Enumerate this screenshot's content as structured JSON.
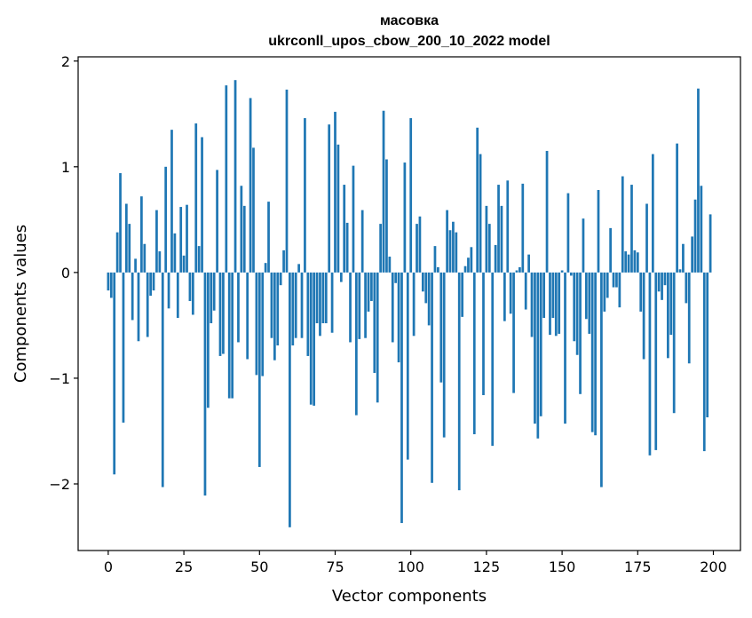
{
  "chart_data": {
    "type": "bar",
    "title": "масовка",
    "subtitle": "ukrconll_upos_cbow_200_10_2022 model",
    "xlabel": "Vector components",
    "ylabel": "Components values",
    "xlim": [
      -9.95,
      208.95
    ],
    "ylim": [
      -2.63,
      2.04
    ],
    "xticks": [
      0,
      25,
      50,
      75,
      100,
      125,
      150,
      175,
      200
    ],
    "yticks": [
      -2,
      -1,
      0,
      1,
      2
    ],
    "ytick_labels": [
      "−2",
      "−1",
      "0",
      "1",
      "2"
    ],
    "grid": false,
    "legend": "none",
    "bar_color": "#1f77b4",
    "x": [
      0,
      1,
      2,
      3,
      4,
      5,
      6,
      7,
      8,
      9,
      10,
      11,
      12,
      13,
      14,
      15,
      16,
      17,
      18,
      19,
      20,
      21,
      22,
      23,
      24,
      25,
      26,
      27,
      28,
      29,
      30,
      31,
      32,
      33,
      34,
      35,
      36,
      37,
      38,
      39,
      40,
      41,
      42,
      43,
      44,
      45,
      46,
      47,
      48,
      49,
      50,
      51,
      52,
      53,
      54,
      55,
      56,
      57,
      58,
      59,
      60,
      61,
      62,
      63,
      64,
      65,
      66,
      67,
      68,
      69,
      70,
      71,
      72,
      73,
      74,
      75,
      76,
      77,
      78,
      79,
      80,
      81,
      82,
      83,
      84,
      85,
      86,
      87,
      88,
      89,
      90,
      91,
      92,
      93,
      94,
      95,
      96,
      97,
      98,
      99,
      100,
      101,
      102,
      103,
      104,
      105,
      106,
      107,
      108,
      109,
      110,
      111,
      112,
      113,
      114,
      115,
      116,
      117,
      118,
      119,
      120,
      121,
      122,
      123,
      124,
      125,
      126,
      127,
      128,
      129,
      130,
      131,
      132,
      133,
      134,
      135,
      136,
      137,
      138,
      139,
      140,
      141,
      142,
      143,
      144,
      145,
      146,
      147,
      148,
      149,
      150,
      151,
      152,
      153,
      154,
      155,
      156,
      157,
      158,
      159,
      160,
      161,
      162,
      163,
      164,
      165,
      166,
      167,
      168,
      169,
      170,
      171,
      172,
      173,
      174,
      175,
      176,
      177,
      178,
      179,
      180,
      181,
      182,
      183,
      184,
      185,
      186,
      187,
      188,
      189,
      190,
      191,
      192,
      193,
      194,
      195,
      196,
      197,
      198,
      199
    ],
    "values": [
      -0.17,
      -0.24,
      -1.91,
      0.38,
      0.94,
      -1.42,
      0.65,
      0.46,
      -0.45,
      0.13,
      -0.65,
      0.72,
      0.27,
      -0.61,
      -0.22,
      -0.17,
      0.59,
      0.2,
      -2.03,
      1.0,
      -0.34,
      1.35,
      0.37,
      -0.43,
      0.62,
      0.16,
      0.64,
      -0.27,
      -0.4,
      1.41,
      0.25,
      1.28,
      -2.11,
      -1.28,
      -0.48,
      -0.36,
      0.97,
      -0.79,
      -0.77,
      1.77,
      -1.19,
      -1.19,
      1.82,
      -0.66,
      0.82,
      0.63,
      -0.82,
      1.65,
      1.18,
      -0.97,
      -1.84,
      -0.98,
      0.09,
      0.67,
      -0.62,
      -0.83,
      -0.69,
      -0.12,
      0.21,
      1.73,
      -2.41,
      -0.69,
      -0.62,
      0.08,
      -0.62,
      1.46,
      -0.79,
      -1.25,
      -1.26,
      -0.48,
      -0.6,
      -0.48,
      -0.48,
      1.4,
      -0.57,
      1.52,
      1.21,
      -0.09,
      0.83,
      0.47,
      -0.66,
      1.01,
      -1.35,
      -0.63,
      0.59,
      -0.62,
      -0.37,
      -0.27,
      -0.95,
      -1.23,
      0.46,
      1.53,
      1.07,
      0.15,
      -0.66,
      -0.1,
      -0.85,
      -2.37,
      1.04,
      -1.77,
      1.46,
      -0.6,
      0.46,
      0.53,
      -0.18,
      -0.29,
      -0.5,
      -1.99,
      0.25,
      0.05,
      -1.04,
      -1.56,
      0.59,
      0.4,
      0.48,
      0.38,
      -2.06,
      -0.42,
      0.06,
      0.14,
      0.24,
      -1.53,
      1.37,
      1.12,
      -1.16,
      0.63,
      0.46,
      -1.64,
      0.26,
      0.83,
      0.63,
      -0.46,
      0.87,
      -0.39,
      -1.14,
      0.02,
      0.05,
      0.84,
      -0.35,
      0.17,
      -0.61,
      -1.43,
      -1.57,
      -1.36,
      -0.43,
      1.15,
      -0.59,
      -0.43,
      -0.6,
      -0.58,
      0.02,
      -1.43,
      0.75,
      -0.03,
      -0.65,
      -0.78,
      -1.15,
      0.51,
      -0.44,
      -0.58,
      -1.51,
      -1.54,
      0.78,
      -2.03,
      -0.37,
      -0.24,
      0.42,
      -0.14,
      -0.14,
      -0.33,
      0.91,
      0.2,
      0.17,
      0.83,
      0.21,
      0.19,
      -0.37,
      -0.82,
      0.65,
      -1.73,
      1.12,
      -1.68,
      -0.18,
      -0.26,
      -0.12,
      -0.81,
      -0.59,
      -1.33,
      1.22,
      0.03,
      0.27,
      -0.29,
      -0.86,
      0.34,
      0.69,
      1.74,
      0.82,
      -1.69,
      -1.37,
      0.55
    ]
  }
}
